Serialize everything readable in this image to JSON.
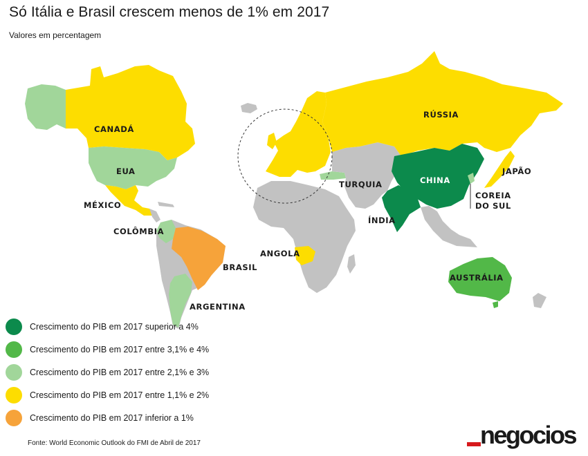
{
  "title": "Só Itália e Brasil crescem menos de 1% em 2017",
  "subtitle": "Valores em percentagem",
  "colors": {
    "above_4": "#0c8a4c",
    "from_3_1_to_4": "#52b848",
    "from_2_1_to_3": "#a1d69a",
    "from_1_1_to_2": "#fddd00",
    "below_1": "#f6a33a",
    "no_data": "#c2c2c2"
  },
  "labels": {
    "canada": "CANADÁ",
    "eua": "EUA",
    "mexico": "MÉXICO",
    "colombia": "COLÔMBIA",
    "brasil": "BRASIL",
    "argentina": "ARGENTINA",
    "angola": "ANGOLA",
    "turquia": "TURQUIA",
    "russia": "RÚSSIA",
    "china": "CHINA",
    "india": "ÍNDIA",
    "japao": "JAPÃO",
    "coreia_line1": "COREIA",
    "coreia_line2": "DO SUL",
    "australia": "AUSTRÁLIA"
  },
  "legend": [
    {
      "label": "Crescimento do PIB em 2017 superior a 4%",
      "color": "#0c8a4c"
    },
    {
      "label": "Crescimento do PIB em 2017 entre 3,1% e 4%",
      "color": "#52b848"
    },
    {
      "label": "Crescimento do PIB em 2017 entre 2,1% e 3%",
      "color": "#a1d69a"
    },
    {
      "label": "Crescimento do PIB em 2017 entre 1,1% e 2%",
      "color": "#fddd00"
    },
    {
      "label": "Crescimento do PIB em 2017 inferior a 1%",
      "color": "#f6a33a"
    }
  ],
  "source": "Fonte: World Economic Outlook do FMI de Abril de 2017",
  "logo": "negocios"
}
